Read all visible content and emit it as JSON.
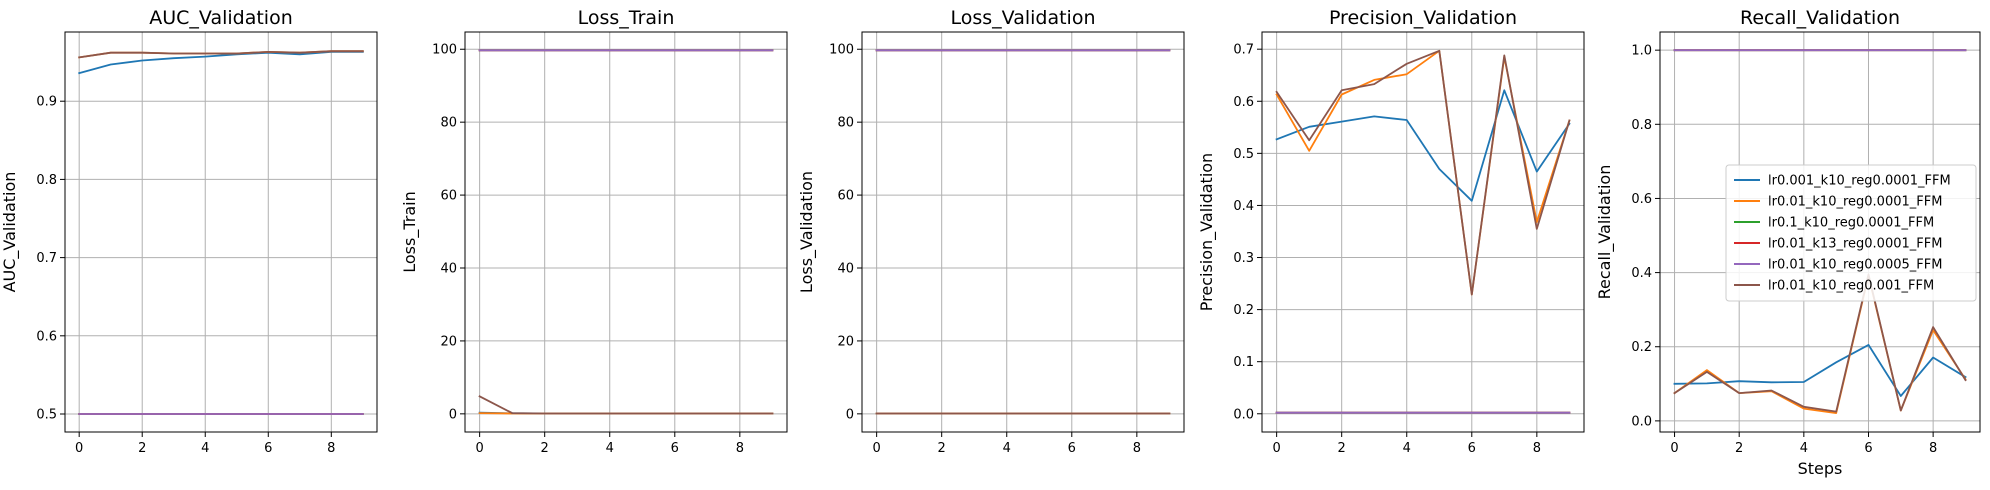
{
  "colors": {
    "lr0.001_k10_reg0.0001_FFM": "#1f77b4",
    "lr0.01_k10_reg0.0001_FFM": "#ff7f0e",
    "lr0.1_k10_reg0.0001_FFM": "#2ca02c",
    "lr0.01_k13_reg0.0001_FFM": "#d62728",
    "lr0.01_k10_reg0.0005_FFM": "#9467bd",
    "lr0.01_k10_reg0.001_FFM": "#8c564b"
  },
  "legend": {
    "placement": "center-right of last panel",
    "entries": [
      "lr0.001_k10_reg0.0001_FFM",
      "lr0.01_k10_reg0.0001_FFM",
      "lr0.1_k10_reg0.0001_FFM",
      "lr0.01_k13_reg0.0001_FFM",
      "lr0.01_k10_reg0.0005_FFM",
      "lr0.01_k10_reg0.001_FFM"
    ]
  },
  "chart_data": [
    {
      "type": "line",
      "title": "AUC_Validation",
      "xlabel": "",
      "ylabel": "AUC_Validation",
      "grid": true,
      "xlim": [
        -0.45,
        9.45
      ],
      "ylim": [
        0.477,
        0.9885
      ],
      "xticks": [
        0,
        2,
        4,
        6,
        8
      ],
      "yticks": [
        0.5,
        0.6,
        0.7,
        0.8,
        0.9
      ],
      "yticklabels": [
        "0.5",
        "0.6",
        "0.7",
        "0.8",
        "0.9"
      ],
      "x": [
        0,
        1,
        2,
        3,
        4,
        5,
        6,
        7,
        8,
        9
      ],
      "series": [
        {
          "name": "lr0.001_k10_reg0.0001_FFM",
          "values": [
            0.936,
            0.947,
            0.952,
            0.955,
            0.957,
            0.96,
            0.962,
            0.96,
            0.963,
            0.963
          ]
        },
        {
          "name": "lr0.01_k10_reg0.0001_FFM",
          "values": [
            0.956,
            0.962,
            0.962,
            0.961,
            0.961,
            0.961,
            0.963,
            0.962,
            0.964,
            0.964
          ]
        },
        {
          "name": "lr0.1_k10_reg0.0001_FFM",
          "values": [
            0.5,
            0.5,
            0.5,
            0.5,
            0.5,
            0.5,
            0.5,
            0.5,
            0.5,
            0.5
          ]
        },
        {
          "name": "lr0.01_k13_reg0.0001_FFM",
          "values": [
            0.5,
            0.5,
            0.5,
            0.5,
            0.5,
            0.5,
            0.5,
            0.5,
            0.5,
            0.5
          ]
        },
        {
          "name": "lr0.01_k10_reg0.0005_FFM",
          "values": [
            0.5,
            0.5,
            0.5,
            0.5,
            0.5,
            0.5,
            0.5,
            0.5,
            0.5,
            0.5
          ]
        },
        {
          "name": "lr0.01_k10_reg0.001_FFM",
          "values": [
            0.956,
            0.962,
            0.962,
            0.961,
            0.961,
            0.961,
            0.963,
            0.962,
            0.964,
            0.964
          ]
        }
      ]
    },
    {
      "type": "line",
      "title": "Loss_Train",
      "xlabel": "",
      "ylabel": "Loss_Train",
      "grid": true,
      "xlim": [
        -0.45,
        9.45
      ],
      "ylim": [
        -4.98,
        104.73
      ],
      "xticks": [
        0,
        2,
        4,
        6,
        8
      ],
      "yticks": [
        0,
        20,
        40,
        60,
        80,
        100
      ],
      "yticklabels": [
        "0",
        "20",
        "40",
        "60",
        "80",
        "100"
      ],
      "x": [
        0,
        1,
        2,
        3,
        4,
        5,
        6,
        7,
        8,
        9
      ],
      "series": [
        {
          "name": "lr0.001_k10_reg0.0001_FFM",
          "values": [
            0.3,
            0.15,
            0.12,
            0.1,
            0.1,
            0.1,
            0.1,
            0.1,
            0.1,
            0.1
          ]
        },
        {
          "name": "lr0.01_k10_reg0.0001_FFM",
          "values": [
            0.2,
            0.1,
            0.1,
            0.1,
            0.1,
            0.1,
            0.1,
            0.1,
            0.1,
            0.1
          ]
        },
        {
          "name": "lr0.1_k10_reg0.0001_FFM",
          "values": [
            99.7,
            99.7,
            99.7,
            99.7,
            99.7,
            99.7,
            99.7,
            99.7,
            99.7,
            99.7
          ]
        },
        {
          "name": "lr0.01_k13_reg0.0001_FFM",
          "values": [
            99.7,
            99.7,
            99.7,
            99.7,
            99.7,
            99.7,
            99.7,
            99.7,
            99.7,
            99.7
          ]
        },
        {
          "name": "lr0.01_k10_reg0.0005_FFM",
          "values": [
            99.7,
            99.7,
            99.7,
            99.7,
            99.7,
            99.7,
            99.7,
            99.7,
            99.7,
            99.7
          ]
        },
        {
          "name": "lr0.01_k10_reg0.001_FFM",
          "values": [
            4.8,
            0.2,
            0.1,
            0.1,
            0.1,
            0.1,
            0.1,
            0.1,
            0.1,
            0.1
          ]
        }
      ]
    },
    {
      "type": "line",
      "title": "Loss_Validation",
      "xlabel": "",
      "ylabel": "Loss_Validation",
      "grid": true,
      "xlim": [
        -0.45,
        9.45
      ],
      "ylim": [
        -4.98,
        104.73
      ],
      "xticks": [
        0,
        2,
        4,
        6,
        8
      ],
      "yticks": [
        0,
        20,
        40,
        60,
        80,
        100
      ],
      "yticklabels": [
        "0",
        "20",
        "40",
        "60",
        "80",
        "100"
      ],
      "x": [
        0,
        1,
        2,
        3,
        4,
        5,
        6,
        7,
        8,
        9
      ],
      "series": [
        {
          "name": "lr0.001_k10_reg0.0001_FFM",
          "values": [
            0.1,
            0.1,
            0.1,
            0.1,
            0.1,
            0.1,
            0.1,
            0.1,
            0.1,
            0.1
          ]
        },
        {
          "name": "lr0.01_k10_reg0.0001_FFM",
          "values": [
            0.1,
            0.1,
            0.1,
            0.1,
            0.1,
            0.1,
            0.1,
            0.1,
            0.1,
            0.1
          ]
        },
        {
          "name": "lr0.1_k10_reg0.0001_FFM",
          "values": [
            99.7,
            99.7,
            99.7,
            99.7,
            99.7,
            99.7,
            99.7,
            99.7,
            99.7,
            99.7
          ]
        },
        {
          "name": "lr0.01_k13_reg0.0001_FFM",
          "values": [
            99.7,
            99.7,
            99.7,
            99.7,
            99.7,
            99.7,
            99.7,
            99.7,
            99.7,
            99.7
          ]
        },
        {
          "name": "lr0.01_k10_reg0.0005_FFM",
          "values": [
            99.7,
            99.7,
            99.7,
            99.7,
            99.7,
            99.7,
            99.7,
            99.7,
            99.7,
            99.7
          ]
        },
        {
          "name": "lr0.01_k10_reg0.001_FFM",
          "values": [
            0.1,
            0.1,
            0.1,
            0.1,
            0.1,
            0.1,
            0.1,
            0.1,
            0.1,
            0.1
          ]
        }
      ]
    },
    {
      "type": "line",
      "title": "Precision_Validation",
      "xlabel": "",
      "ylabel": "Precision_Validation",
      "grid": true,
      "xlim": [
        -0.45,
        9.45
      ],
      "ylim": [
        -0.035,
        0.733
      ],
      "xticks": [
        0,
        2,
        4,
        6,
        8
      ],
      "yticks": [
        0.0,
        0.1,
        0.2,
        0.3,
        0.4,
        0.5,
        0.6,
        0.7
      ],
      "yticklabels": [
        "0.0",
        "0.1",
        "0.2",
        "0.3",
        "0.4",
        "0.5",
        "0.6",
        "0.7"
      ],
      "x": [
        0,
        1,
        2,
        3,
        4,
        5,
        6,
        7,
        8,
        9
      ],
      "series": [
        {
          "name": "lr0.001_k10_reg0.0001_FFM",
          "values": [
            0.527,
            0.551,
            0.561,
            0.571,
            0.564,
            0.47,
            0.409,
            0.621,
            0.465,
            0.557
          ]
        },
        {
          "name": "lr0.01_k10_reg0.0001_FFM",
          "values": [
            0.613,
            0.505,
            0.613,
            0.641,
            0.652,
            0.697,
            0.229,
            0.685,
            0.368,
            0.563
          ]
        },
        {
          "name": "lr0.1_k10_reg0.0001_FFM",
          "values": [
            0.002,
            0.002,
            0.002,
            0.002,
            0.002,
            0.002,
            0.002,
            0.002,
            0.002,
            0.002
          ]
        },
        {
          "name": "lr0.01_k13_reg0.0001_FFM",
          "values": [
            0.002,
            0.002,
            0.002,
            0.002,
            0.002,
            0.002,
            0.002,
            0.002,
            0.002,
            0.002
          ]
        },
        {
          "name": "lr0.01_k10_reg0.0005_FFM",
          "values": [
            0.002,
            0.002,
            0.002,
            0.002,
            0.002,
            0.002,
            0.002,
            0.002,
            0.002,
            0.002
          ]
        },
        {
          "name": "lr0.01_k10_reg0.001_FFM",
          "values": [
            0.618,
            0.525,
            0.621,
            0.633,
            0.672,
            0.697,
            0.229,
            0.688,
            0.355,
            0.563
          ]
        }
      ]
    },
    {
      "type": "line",
      "title": "Recall_Validation",
      "xlabel": "Steps",
      "ylabel": "Recall_Validation",
      "grid": true,
      "xlim": [
        -0.45,
        9.45
      ],
      "ylim": [
        -0.03,
        1.049
      ],
      "xticks": [
        0,
        2,
        4,
        6,
        8
      ],
      "yticks": [
        0.0,
        0.2,
        0.4,
        0.6,
        0.8,
        1.0
      ],
      "yticklabels": [
        "0.0",
        "0.2",
        "0.4",
        "0.6",
        "0.8",
        "1.0"
      ],
      "x": [
        0,
        1,
        2,
        3,
        4,
        5,
        6,
        7,
        8,
        9
      ],
      "series": [
        {
          "name": "lr0.001_k10_reg0.0001_FFM",
          "values": [
            0.1,
            0.101,
            0.107,
            0.104,
            0.105,
            0.158,
            0.205,
            0.067,
            0.171,
            0.118
          ]
        },
        {
          "name": "lr0.01_k10_reg0.0001_FFM",
          "values": [
            0.075,
            0.137,
            0.075,
            0.08,
            0.033,
            0.021,
            0.392,
            0.028,
            0.245,
            0.112
          ]
        },
        {
          "name": "lr0.1_k10_reg0.0001_FFM",
          "values": [
            1.0,
            1.0,
            1.0,
            1.0,
            1.0,
            1.0,
            1.0,
            1.0,
            1.0,
            1.0
          ]
        },
        {
          "name": "lr0.01_k13_reg0.0001_FFM",
          "values": [
            1.0,
            1.0,
            1.0,
            1.0,
            1.0,
            1.0,
            1.0,
            1.0,
            1.0,
            1.0
          ]
        },
        {
          "name": "lr0.01_k10_reg0.0005_FFM",
          "values": [
            1.0,
            1.0,
            1.0,
            1.0,
            1.0,
            1.0,
            1.0,
            1.0,
            1.0,
            1.0
          ]
        },
        {
          "name": "lr0.01_k10_reg0.001_FFM",
          "values": [
            0.075,
            0.132,
            0.075,
            0.082,
            0.038,
            0.025,
            0.395,
            0.028,
            0.253,
            0.11
          ]
        }
      ]
    }
  ]
}
